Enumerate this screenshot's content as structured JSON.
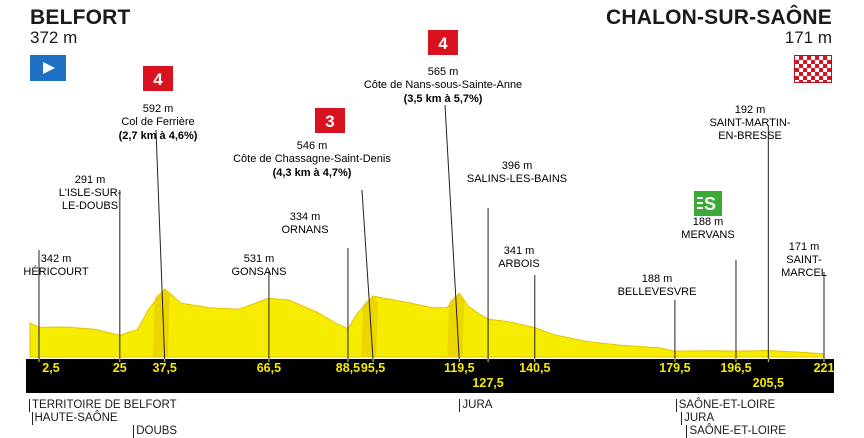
{
  "start": {
    "name": "BELFORT",
    "altitude": "372 m"
  },
  "finish": {
    "name": "CHALON-SUR-SAÔNE",
    "altitude": "171 m"
  },
  "climbs": [
    {
      "category": "4",
      "altitude": "592 m",
      "name": "Col de Ferrière",
      "details": "(2,7 km à 4,6%)",
      "km": 37.5
    },
    {
      "category": "3",
      "altitude": "546 m",
      "name": "Côte de Chassagne-Saint-Denis",
      "details": "(4,3 km à 4,7%)",
      "km": 95.5
    },
    {
      "category": "4",
      "altitude": "565 m",
      "name": "Côte de Nans-sous-Sainte-Anne",
      "details": "(3,5 km à 5,7%)",
      "km": 119.5
    }
  ],
  "sprint": {
    "label": "S",
    "km": 196.5
  },
  "places": [
    {
      "altitude": "342 m",
      "lines": [
        "HÉRICOURT"
      ],
      "km": 2.5
    },
    {
      "altitude": "291 m",
      "lines": [
        "L'ISLE-SUR-",
        "LE-DOUBS"
      ],
      "km": 25
    },
    {
      "altitude": "531 m",
      "lines": [
        "GONSANS"
      ],
      "km": 66.5
    },
    {
      "altitude": "334 m",
      "lines": [
        "ORNANS"
      ],
      "km": 88.5
    },
    {
      "altitude": "396 m",
      "lines": [
        "SALINS-LES-BAINS"
      ],
      "km": 127.5
    },
    {
      "altitude": "341 m",
      "lines": [
        "ARBOIS"
      ],
      "km": 140.5
    },
    {
      "altitude": "188 m",
      "lines": [
        "BELLEVESVRE"
      ],
      "km": 179.5
    },
    {
      "altitude": "188 m",
      "lines": [
        "MERVANS"
      ],
      "km": 196.5
    },
    {
      "altitude": "192 m",
      "lines": [
        "SAINT-MARTIN-",
        "EN-BRESSE"
      ],
      "km": 205.5
    },
    {
      "altitude": "171 m",
      "lines": [
        "SAINT-",
        "MARCEL"
      ],
      "km": 221
    }
  ],
  "km_markers": [
    "2,5",
    "25",
    "37,5",
    "66,5",
    "88,5",
    "95,5",
    "119,5",
    "127,5",
    "140,5",
    "179,5",
    "196,5",
    "205,5",
    "221"
  ],
  "departments": [
    {
      "label": "TERRITOIRE DE BELFORT",
      "km": 0
    },
    {
      "label": "HAUTE-SAÔNE",
      "km": 0.7
    },
    {
      "label": "DOUBS",
      "km": 29
    },
    {
      "label": "JURA",
      "km": 119.8
    },
    {
      "label": "SAÔNE-ET-LOIRE",
      "km": 180
    },
    {
      "label": "JURA",
      "km": 181.5
    },
    {
      "label": "SAÔNE-ET-LOIRE",
      "km": 183
    }
  ],
  "colors": {
    "profile": "#f5ec00",
    "profile_dark": "#e6c400",
    "climb": "#d8131f",
    "sprint": "#3aa935",
    "band": "#000000",
    "start": "#1f6fc4"
  },
  "chart_data": {
    "type": "area",
    "xlabel": "",
    "ylabel": "",
    "xlim": [
      0,
      221
    ],
    "ylim": [
      150,
      650
    ],
    "series": [
      {
        "x": [
          0,
          2.5,
          10,
          18,
          25,
          30,
          33,
          37.5,
          42,
          50,
          58,
          66.5,
          72,
          80,
          85,
          88.5,
          91,
          95.5,
          100,
          106,
          112,
          116,
          119.5,
          122,
          125,
          127.5,
          133,
          140.5,
          146,
          155,
          165,
          175,
          179.5,
          190,
          196.5,
          205.5,
          215,
          221
        ],
        "y": [
          372,
          342,
          345,
          330,
          291,
          330,
          460,
          592,
          500,
          470,
          460,
          531,
          520,
          440,
          370,
          334,
          430,
          546,
          525,
          500,
          470,
          470,
          565,
          480,
          430,
          396,
          380,
          341,
          295,
          250,
          225,
          210,
          188,
          190,
          188,
          192,
          180,
          171
        ]
      }
    ]
  }
}
